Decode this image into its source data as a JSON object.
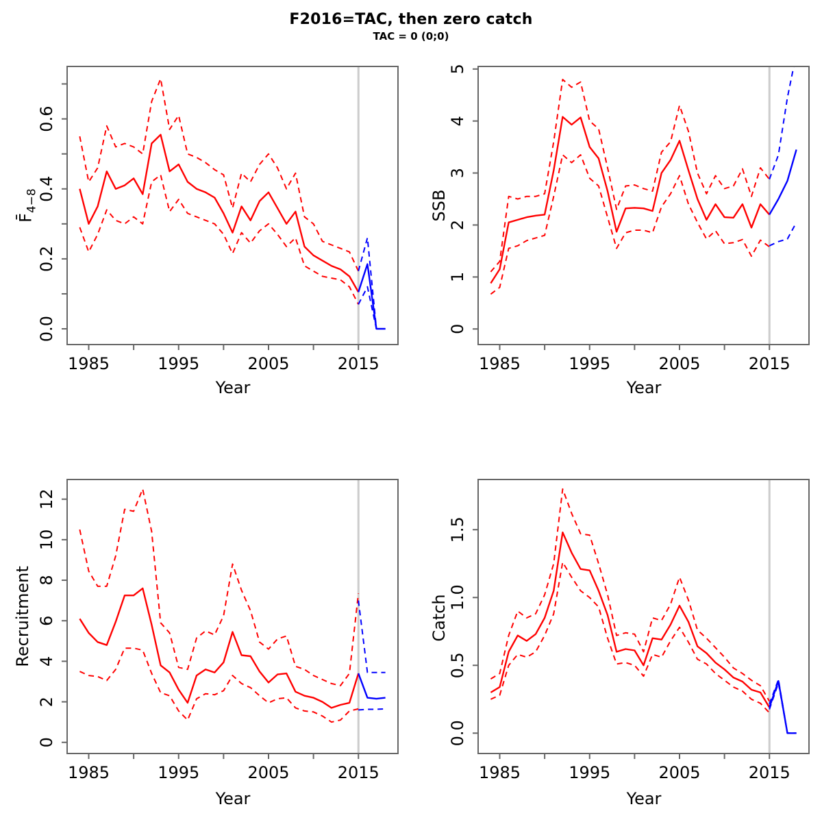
{
  "title": "F2016=TAC, then zero catch",
  "subtitle": "TAC = 0 (0;0)",
  "colors": {
    "historical": "#ff0000",
    "projection": "#0000ff",
    "vline": "#cccccc",
    "box": "#666666"
  },
  "axis": {
    "xlabel": "Year",
    "xlim": [
      1982.6,
      2019.4
    ],
    "vline_x": 2015,
    "xticks": [
      {
        "v": 1985,
        "label": "1985"
      },
      {
        "v": 1990,
        "label": ""
      },
      {
        "v": 1995,
        "label": "1995"
      },
      {
        "v": 2000,
        "label": ""
      },
      {
        "v": 2005,
        "label": "2005"
      },
      {
        "v": 2010,
        "label": ""
      },
      {
        "v": 2015,
        "label": "2015"
      }
    ],
    "years_hist": [
      1984,
      1985,
      1986,
      1987,
      1988,
      1989,
      1990,
      1991,
      1992,
      1993,
      1994,
      1995,
      1996,
      1997,
      1998,
      1999,
      2000,
      2001,
      2002,
      2003,
      2004,
      2005,
      2006,
      2007,
      2008,
      2009,
      2010,
      2011,
      2012,
      2013,
      2014,
      2015
    ],
    "years_proj": [
      2015,
      2016,
      2017,
      2018
    ]
  },
  "chart_data": [
    {
      "type": "line",
      "name": "fbar",
      "ylabel_main": "F̄",
      "ylabel_sub": "4−8",
      "xlabel": "Year",
      "ylim": [
        -0.045,
        0.75
      ],
      "yticks": [
        {
          "v": 0.0,
          "label": "0.0"
        },
        {
          "v": 0.1,
          "label": ""
        },
        {
          "v": 0.2,
          "label": "0.2"
        },
        {
          "v": 0.3,
          "label": ""
        },
        {
          "v": 0.4,
          "label": "0.4"
        },
        {
          "v": 0.5,
          "label": ""
        },
        {
          "v": 0.6,
          "label": "0.6"
        },
        {
          "v": 0.7,
          "label": ""
        }
      ],
      "median": [
        0.4,
        0.3,
        0.35,
        0.45,
        0.4,
        0.41,
        0.43,
        0.385,
        0.53,
        0.555,
        0.45,
        0.47,
        0.42,
        0.4,
        0.39,
        0.375,
        0.33,
        0.275,
        0.35,
        0.31,
        0.365,
        0.39,
        0.345,
        0.3,
        0.335,
        0.235,
        0.21,
        0.195,
        0.18,
        0.17,
        0.15,
        0.105
      ],
      "upper": [
        0.55,
        0.42,
        0.46,
        0.58,
        0.52,
        0.53,
        0.52,
        0.5,
        0.65,
        0.715,
        0.57,
        0.61,
        0.5,
        0.49,
        0.475,
        0.455,
        0.44,
        0.345,
        0.445,
        0.42,
        0.47,
        0.5,
        0.46,
        0.4,
        0.445,
        0.32,
        0.3,
        0.25,
        0.24,
        0.23,
        0.22,
        0.165
      ],
      "lower": [
        0.29,
        0.22,
        0.27,
        0.34,
        0.31,
        0.3,
        0.32,
        0.3,
        0.42,
        0.44,
        0.335,
        0.37,
        0.33,
        0.32,
        0.31,
        0.3,
        0.27,
        0.215,
        0.275,
        0.245,
        0.28,
        0.3,
        0.27,
        0.235,
        0.26,
        0.18,
        0.165,
        0.15,
        0.145,
        0.14,
        0.12,
        0.07
      ],
      "proj_median": [
        0.105,
        0.185,
        0.0,
        0.0
      ],
      "proj_upper": [
        0.165,
        0.26,
        0.0,
        0.0
      ],
      "proj_lower": [
        0.07,
        0.12,
        0.0,
        0.0
      ]
    },
    {
      "type": "line",
      "name": "ssb",
      "ylabel_main": "SSB",
      "ylabel_sub": "",
      "xlabel": "Year",
      "ylim": [
        -0.3,
        5.05
      ],
      "yticks": [
        {
          "v": 0,
          "label": "0"
        },
        {
          "v": 1,
          "label": "1"
        },
        {
          "v": 2,
          "label": "2"
        },
        {
          "v": 3,
          "label": "3"
        },
        {
          "v": 4,
          "label": "4"
        },
        {
          "v": 5,
          "label": "5"
        }
      ],
      "median": [
        0.88,
        1.15,
        2.05,
        2.1,
        2.15,
        2.18,
        2.2,
        3.05,
        4.08,
        3.93,
        4.07,
        3.5,
        3.28,
        2.65,
        1.87,
        2.32,
        2.33,
        2.32,
        2.27,
        3.0,
        3.25,
        3.62,
        3.05,
        2.5,
        2.1,
        2.4,
        2.15,
        2.14,
        2.4,
        1.95,
        2.4,
        2.2
      ],
      "upper": [
        1.1,
        1.3,
        2.55,
        2.5,
        2.55,
        2.55,
        2.6,
        3.6,
        4.8,
        4.65,
        4.75,
        4.0,
        3.85,
        3.1,
        2.3,
        2.75,
        2.77,
        2.7,
        2.65,
        3.4,
        3.6,
        4.3,
        3.8,
        3.0,
        2.6,
        2.95,
        2.7,
        2.75,
        3.08,
        2.55,
        3.1,
        2.88
      ],
      "lower": [
        0.67,
        0.8,
        1.55,
        1.6,
        1.7,
        1.75,
        1.8,
        2.55,
        3.35,
        3.2,
        3.35,
        2.9,
        2.75,
        2.15,
        1.55,
        1.85,
        1.9,
        1.9,
        1.85,
        2.35,
        2.6,
        2.95,
        2.4,
        2.05,
        1.73,
        1.89,
        1.64,
        1.66,
        1.72,
        1.4,
        1.71,
        1.58
      ],
      "proj_median": [
        2.2,
        2.5,
        2.85,
        3.45
      ],
      "proj_upper": [
        2.88,
        3.35,
        4.45,
        5.3
      ],
      "proj_lower": [
        1.6,
        1.68,
        1.73,
        2.05
      ]
    },
    {
      "type": "line",
      "name": "recruitment",
      "ylabel_main": "Recruitment",
      "ylabel_sub": "",
      "xlabel": "Year",
      "ylim": [
        -0.55,
        12.97
      ],
      "yticks": [
        {
          "v": 0,
          "label": "0"
        },
        {
          "v": 2,
          "label": "2"
        },
        {
          "v": 4,
          "label": "4"
        },
        {
          "v": 6,
          "label": "6"
        },
        {
          "v": 8,
          "label": "8"
        },
        {
          "v": 10,
          "label": "10"
        },
        {
          "v": 12,
          "label": "12"
        }
      ],
      "median": [
        6.1,
        5.4,
        4.95,
        4.8,
        5.95,
        7.25,
        7.25,
        7.6,
        5.8,
        3.8,
        3.45,
        2.6,
        1.95,
        3.3,
        3.6,
        3.45,
        3.95,
        5.45,
        4.3,
        4.25,
        3.5,
        2.95,
        3.35,
        3.4,
        2.5,
        2.3,
        2.2,
        2.0,
        1.7,
        1.85,
        1.95,
        3.4
      ],
      "upper": [
        10.5,
        8.45,
        7.7,
        7.7,
        9.2,
        11.5,
        11.4,
        12.5,
        10.4,
        5.9,
        5.4,
        3.7,
        3.6,
        5.15,
        5.5,
        5.3,
        6.25,
        8.8,
        7.5,
        6.5,
        4.95,
        4.6,
        5.1,
        5.25,
        3.75,
        3.6,
        3.3,
        3.1,
        2.9,
        2.8,
        3.4,
        7.35
      ],
      "lower": [
        3.5,
        3.3,
        3.25,
        3.05,
        3.6,
        4.65,
        4.65,
        4.55,
        3.4,
        2.45,
        2.3,
        1.55,
        1.1,
        2.15,
        2.4,
        2.35,
        2.55,
        3.3,
        2.9,
        2.7,
        2.3,
        1.95,
        2.15,
        2.2,
        1.7,
        1.55,
        1.5,
        1.3,
        1.0,
        1.1,
        1.55,
        1.65
      ],
      "proj_median": [
        3.4,
        2.2,
        2.15,
        2.2
      ],
      "proj_upper": [
        7.0,
        3.45,
        3.45,
        3.45
      ],
      "proj_lower": [
        1.6,
        1.63,
        1.63,
        1.65
      ]
    },
    {
      "type": "line",
      "name": "catch",
      "ylabel_main": "Catch",
      "ylabel_sub": "",
      "xlabel": "Year",
      "ylim": [
        -0.15,
        1.87
      ],
      "yticks": [
        {
          "v": 0.0,
          "label": "0.0"
        },
        {
          "v": 0.5,
          "label": "0.5"
        },
        {
          "v": 1.0,
          "label": "1.0"
        },
        {
          "v": 1.5,
          "label": "1.5"
        }
      ],
      "median": [
        0.3,
        0.34,
        0.6,
        0.72,
        0.68,
        0.73,
        0.85,
        1.05,
        1.48,
        1.33,
        1.21,
        1.2,
        1.05,
        0.87,
        0.6,
        0.62,
        0.61,
        0.5,
        0.7,
        0.69,
        0.8,
        0.94,
        0.82,
        0.64,
        0.59,
        0.52,
        0.47,
        0.41,
        0.38,
        0.32,
        0.3,
        0.19
      ],
      "upper": [
        0.4,
        0.44,
        0.72,
        0.9,
        0.85,
        0.88,
        1.02,
        1.25,
        1.8,
        1.62,
        1.47,
        1.46,
        1.25,
        1.02,
        0.72,
        0.74,
        0.73,
        0.6,
        0.85,
        0.83,
        0.95,
        1.15,
        0.98,
        0.76,
        0.7,
        0.63,
        0.56,
        0.48,
        0.44,
        0.39,
        0.35,
        0.235
      ],
      "lower": [
        0.25,
        0.28,
        0.5,
        0.58,
        0.56,
        0.6,
        0.72,
        0.88,
        1.26,
        1.15,
        1.05,
        1.0,
        0.93,
        0.7,
        0.51,
        0.52,
        0.5,
        0.42,
        0.58,
        0.56,
        0.68,
        0.78,
        0.67,
        0.545,
        0.51,
        0.44,
        0.39,
        0.34,
        0.31,
        0.25,
        0.22,
        0.15
      ],
      "proj_median": [
        0.19,
        0.385,
        0.0,
        0.0
      ],
      "proj_upper": [
        0.215,
        0.395,
        0.0,
        0.0
      ],
      "proj_lower": [
        0.175,
        0.37,
        0.0,
        0.0
      ]
    }
  ]
}
